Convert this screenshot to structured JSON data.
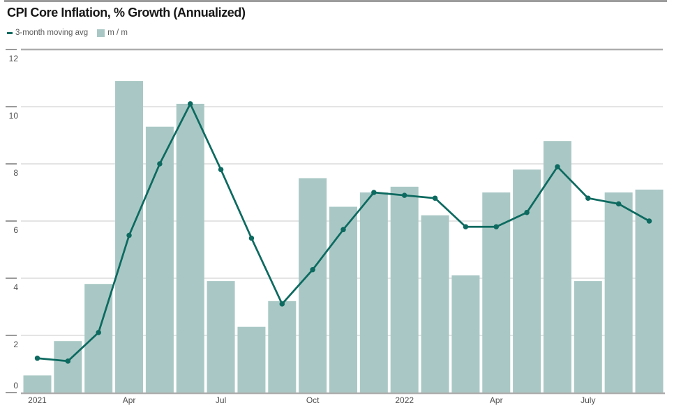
{
  "header": {
    "title": "CPI Core Inflation, % Growth (Annualized)"
  },
  "legend": {
    "items": [
      {
        "label": "3-month moving avg",
        "swatch": "line"
      },
      {
        "label": "m / m",
        "swatch": "square"
      }
    ]
  },
  "colors": {
    "bar": "#a9c8c5",
    "line": "#0d6a60",
    "gridline": "#dcdcdc",
    "axis": "#aeaeae",
    "tick": "#9a9a9a",
    "axis_label": "#4f4f4f",
    "title": "#171717",
    "legend_text": "#5a5a5a",
    "top_rule": "#9c9c9c"
  },
  "chart_data": {
    "type": "bar",
    "subtype": "bar-line-combo",
    "title": "CPI Core Inflation, % Growth (Annualized)",
    "xlabel": "",
    "ylabel": "",
    "ylim": [
      0,
      12
    ],
    "y_ticks": [
      0,
      2,
      4,
      6,
      8,
      10,
      12
    ],
    "grid": "horizontal",
    "legend_position": "top-left",
    "categories": [
      "Jan 2021",
      "Feb 2021",
      "Mar 2021",
      "Apr 2021",
      "May 2021",
      "Jun 2021",
      "Jul 2021",
      "Aug 2021",
      "Sep 2021",
      "Oct 2021",
      "Nov 2021",
      "Dec 2021",
      "Jan 2022",
      "Feb 2022",
      "Mar 2022",
      "Apr 2022",
      "May 2022",
      "Jun 2022",
      "Jul 2022",
      "Aug 2022",
      "Sep 2022"
    ],
    "x_tick_labels": [
      {
        "index": 0,
        "label": "2021"
      },
      {
        "index": 3,
        "label": "Apr"
      },
      {
        "index": 6,
        "label": "Jul"
      },
      {
        "index": 9,
        "label": "Oct"
      },
      {
        "index": 12,
        "label": "2022"
      },
      {
        "index": 15,
        "label": "Apr"
      },
      {
        "index": 18,
        "label": "July"
      }
    ],
    "series": [
      {
        "name": "m / m",
        "type": "bar",
        "values": [
          0.6,
          1.8,
          3.8,
          10.9,
          9.3,
          10.1,
          3.9,
          2.3,
          3.2,
          7.5,
          6.5,
          7.0,
          7.2,
          6.2,
          4.1,
          7.0,
          7.8,
          8.8,
          3.9,
          7.0,
          7.1
        ]
      },
      {
        "name": "3-month moving avg",
        "type": "line",
        "values": [
          1.2,
          1.1,
          2.1,
          5.5,
          8.0,
          10.1,
          7.8,
          5.4,
          3.1,
          4.3,
          5.7,
          7.0,
          6.9,
          6.8,
          5.8,
          5.8,
          6.3,
          7.9,
          6.8,
          6.6,
          6.0
        ]
      }
    ]
  }
}
